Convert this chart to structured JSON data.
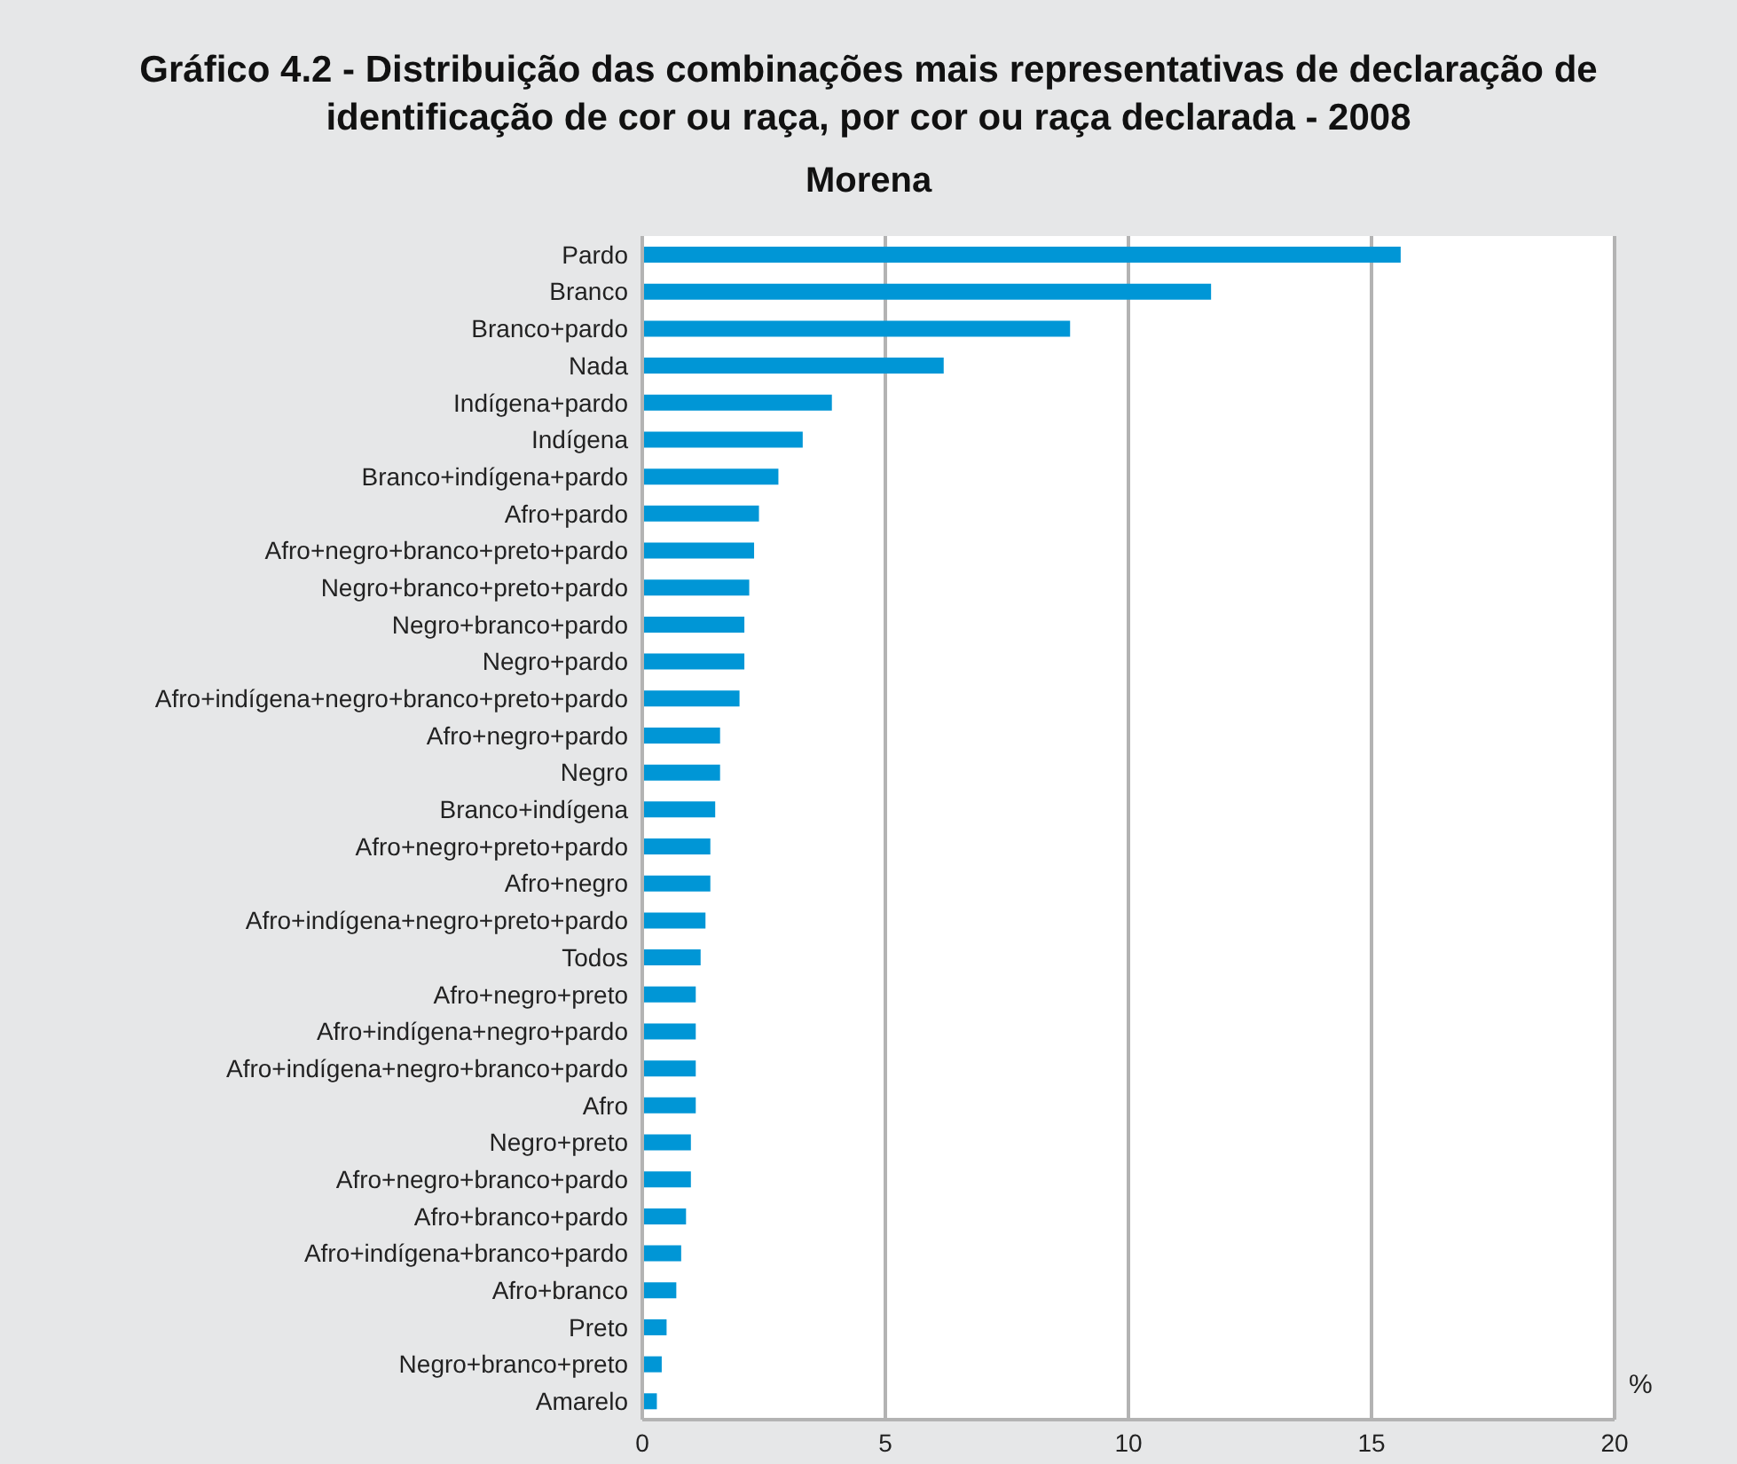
{
  "chart_data": {
    "type": "bar",
    "orientation": "horizontal",
    "title": "Gráfico 4.2 - Distribuição das combinações mais representativas de declaração de identificação de cor ou raça, por cor ou raça declarada - 2008",
    "subtitle": "Morena",
    "xlabel": "%",
    "categories": [
      "Pardo",
      "Branco",
      "Branco+pardo",
      "Nada",
      "Indígena+pardo",
      "Indígena",
      "Branco+indígena+pardo",
      "Afro+pardo",
      "Afro+negro+branco+preto+pardo",
      "Negro+branco+preto+pardo",
      "Negro+branco+pardo",
      "Negro+pardo",
      "Afro+indígena+negro+branco+preto+pardo",
      "Afro+negro+pardo",
      "Negro",
      "Branco+indígena",
      "Afro+negro+preto+pardo",
      "Afro+negro",
      "Afro+indígena+negro+preto+pardo",
      "Todos",
      "Afro+negro+preto",
      "Afro+indígena+negro+pardo",
      "Afro+indígena+negro+branco+pardo",
      "Afro",
      "Negro+preto",
      "Afro+negro+branco+pardo",
      "Afro+branco+pardo",
      "Afro+indígena+branco+pardo",
      "Afro+branco",
      "Preto",
      "Negro+branco+preto",
      "Amarelo"
    ],
    "values": [
      15.6,
      11.7,
      8.8,
      6.2,
      3.9,
      3.3,
      2.8,
      2.4,
      2.3,
      2.2,
      2.1,
      2.1,
      2.0,
      1.6,
      1.6,
      1.5,
      1.4,
      1.4,
      1.3,
      1.2,
      1.1,
      1.1,
      1.1,
      1.1,
      1.0,
      1.0,
      0.9,
      0.8,
      0.7,
      0.5,
      0.4,
      0.3
    ],
    "color": "#0096d6",
    "xlim": [
      0,
      20
    ],
    "xticks": [
      0,
      5,
      10,
      15,
      20
    ],
    "grid": "x",
    "legend": false
  }
}
